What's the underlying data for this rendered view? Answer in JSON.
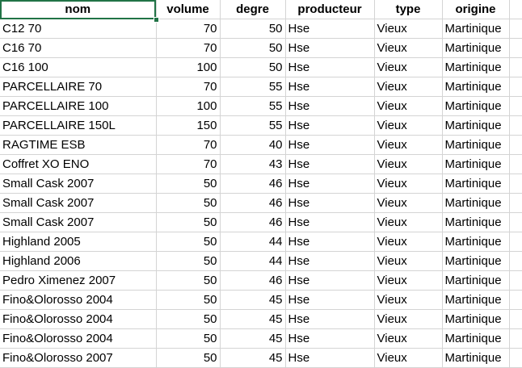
{
  "headers": [
    "nom",
    "volume",
    "degre",
    "producteur",
    "type",
    "origine"
  ],
  "rows": [
    {
      "nom": "C12 70",
      "volume": "70",
      "degre": "50",
      "producteur": "Hse",
      "type": "Vieux",
      "origine": "Martinique"
    },
    {
      "nom": "C16 70",
      "volume": "70",
      "degre": "50",
      "producteur": "Hse",
      "type": "Vieux",
      "origine": "Martinique"
    },
    {
      "nom": "C16 100",
      "volume": "100",
      "degre": "50",
      "producteur": "Hse",
      "type": "Vieux",
      "origine": "Martinique"
    },
    {
      "nom": "PARCELLAIRE 70",
      "volume": "70",
      "degre": "55",
      "producteur": "Hse",
      "type": "Vieux",
      "origine": "Martinique"
    },
    {
      "nom": "PARCELLAIRE 100",
      "volume": "100",
      "degre": "55",
      "producteur": "Hse",
      "type": "Vieux",
      "origine": "Martinique"
    },
    {
      "nom": "PARCELLAIRE 150L",
      "volume": "150",
      "degre": "55",
      "producteur": "Hse",
      "type": "Vieux",
      "origine": "Martinique"
    },
    {
      "nom": "RAGTIME ESB",
      "volume": "70",
      "degre": "40",
      "producteur": "Hse",
      "type": "Vieux",
      "origine": "Martinique"
    },
    {
      "nom": "Coffret XO ENO",
      "volume": "70",
      "degre": "43",
      "producteur": "Hse",
      "type": "Vieux",
      "origine": "Martinique"
    },
    {
      "nom": "Small Cask 2007",
      "volume": "50",
      "degre": "46",
      "producteur": "Hse",
      "type": "Vieux",
      "origine": "Martinique"
    },
    {
      "nom": "Small Cask 2007",
      "volume": "50",
      "degre": "46",
      "producteur": "Hse",
      "type": "Vieux",
      "origine": "Martinique"
    },
    {
      "nom": "Small Cask 2007",
      "volume": "50",
      "degre": "46",
      "producteur": "Hse",
      "type": "Vieux",
      "origine": "Martinique"
    },
    {
      "nom": "Highland 2005",
      "volume": "50",
      "degre": "44",
      "producteur": "Hse",
      "type": "Vieux",
      "origine": "Martinique"
    },
    {
      "nom": "Highland 2006",
      "volume": "50",
      "degre": "44",
      "producteur": "Hse",
      "type": "Vieux",
      "origine": "Martinique"
    },
    {
      "nom": "Pedro Ximenez 2007",
      "volume": "50",
      "degre": "46",
      "producteur": "Hse",
      "type": "Vieux",
      "origine": "Martinique"
    },
    {
      "nom": "Fino&Olorosso 2004",
      "volume": "50",
      "degre": "45",
      "producteur": "Hse",
      "type": "Vieux",
      "origine": "Martinique"
    },
    {
      "nom": "Fino&Olorosso 2004",
      "volume": "50",
      "degre": "45",
      "producteur": "Hse",
      "type": "Vieux",
      "origine": "Martinique"
    },
    {
      "nom": "Fino&Olorosso 2004",
      "volume": "50",
      "degre": "45",
      "producteur": "Hse",
      "type": "Vieux",
      "origine": "Martinique"
    },
    {
      "nom": "Fino&Olorosso 2007",
      "volume": "50",
      "degre": "45",
      "producteur": "Hse",
      "type": "Vieux",
      "origine": "Martinique"
    }
  ],
  "colors": {
    "gridline": "#d4d4d4",
    "selection": "#217346"
  }
}
